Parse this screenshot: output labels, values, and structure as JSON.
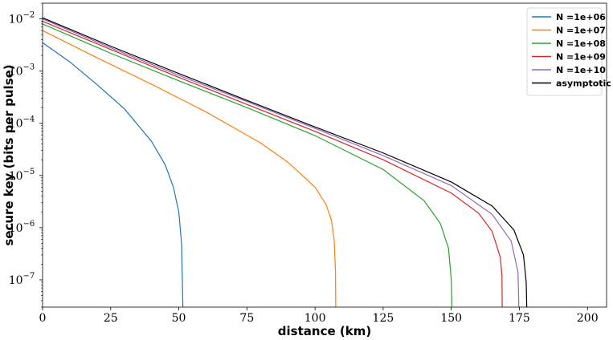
{
  "chart_data": {
    "type": "line",
    "xlabel": "distance (km)",
    "ylabel": "secure key (bits per pulse)",
    "xlim": [
      0,
      207
    ],
    "ylim": [
      3e-08,
      0.02
    ],
    "yscale": "log",
    "grid": false,
    "legend": "top-right",
    "x_ticks": [
      0,
      25,
      50,
      75,
      100,
      125,
      150,
      175,
      200
    ],
    "y_ticks": [
      {
        "value": 1e-07,
        "base": "10",
        "exp": "−7"
      },
      {
        "value": 1e-06,
        "base": "10",
        "exp": "−6"
      },
      {
        "value": 1e-05,
        "base": "10",
        "exp": "−5"
      },
      {
        "value": 0.0001,
        "base": "10",
        "exp": "−4"
      },
      {
        "value": 0.001,
        "base": "10",
        "exp": "−3"
      },
      {
        "value": 0.01,
        "base": "10",
        "exp": "−2"
      }
    ],
    "series": [
      {
        "name": "N =1e+06",
        "color": "#1f77b4",
        "x": [
          0,
          10,
          20,
          30,
          40,
          45,
          48,
          50,
          51,
          51.3,
          51.5
        ],
        "y": [
          0.0035,
          0.0015,
          0.00055,
          0.00019,
          4.5e-05,
          1.6e-05,
          6e-06,
          2e-06,
          5e-07,
          1e-07,
          3e-08
        ]
      },
      {
        "name": "N =1e+07",
        "color": "#ff7f0e",
        "x": [
          0,
          20,
          40,
          60,
          80,
          90,
          100,
          104,
          106,
          107,
          107.5,
          107.6
        ],
        "y": [
          0.006,
          0.0018,
          0.00056,
          0.000165,
          4.2e-05,
          1.8e-05,
          6e-06,
          2.8e-06,
          1.4e-06,
          6e-07,
          1.5e-07,
          3e-08
        ]
      },
      {
        "name": "N =1e+08",
        "color": "#2ca02c",
        "x": [
          0,
          25,
          50,
          75,
          100,
          125,
          140,
          146,
          149,
          150,
          150.2
        ],
        "y": [
          0.008,
          0.0022,
          0.00065,
          0.0002,
          5.8e-05,
          1.3e-05,
          3.3e-06,
          1.2e-06,
          4e-07,
          1e-07,
          3e-08
        ]
      },
      {
        "name": "N =1e+09",
        "color": "#d62728",
        "x": [
          0,
          25,
          50,
          75,
          100,
          125,
          150,
          160,
          165,
          168,
          168.6,
          168.7
        ],
        "y": [
          0.009,
          0.0026,
          0.00076,
          0.00023,
          7e-05,
          2e-05,
          4.6e-06,
          1.9e-06,
          8.5e-07,
          2.7e-07,
          1.2e-07,
          3e-08
        ]
      },
      {
        "name": "N =1e+10",
        "color": "#9467bd",
        "x": [
          0,
          25,
          50,
          75,
          100,
          125,
          150,
          165,
          172,
          174.5,
          174.8
        ],
        "y": [
          0.01,
          0.0028,
          0.00083,
          0.00026,
          8e-05,
          2.4e-05,
          6.4e-06,
          1.8e-06,
          5.5e-07,
          1.4e-07,
          3e-08
        ]
      },
      {
        "name": "asymptotic",
        "color": "#000000",
        "x": [
          0,
          25,
          50,
          75,
          100,
          125,
          150,
          165,
          173,
          176.5,
          177.5,
          177.7
        ],
        "y": [
          0.0105,
          0.003,
          0.0009,
          0.000275,
          8.5e-05,
          2.7e-05,
          7.5e-06,
          2.6e-06,
          9e-07,
          3e-07,
          9e-08,
          3e-08
        ]
      }
    ]
  }
}
